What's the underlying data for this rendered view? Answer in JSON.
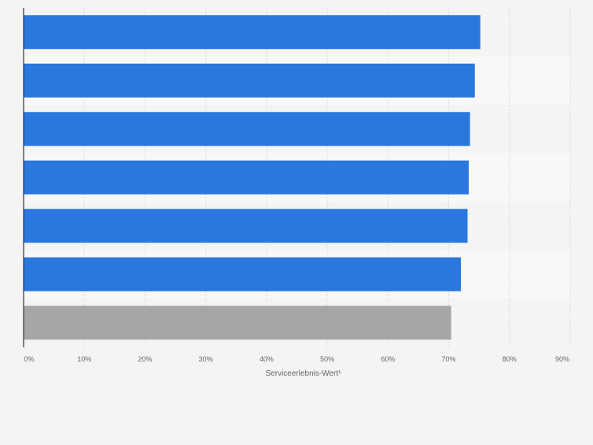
{
  "chart_data": {
    "type": "bar",
    "orientation": "horizontal",
    "xlabel": "Serviceerlebnis-Wert¹",
    "xlim": [
      0,
      90
    ],
    "x_ticks": [
      "0%",
      "10%",
      "20%",
      "30%",
      "40%",
      "50%",
      "60%",
      "70%",
      "80%",
      "90%"
    ],
    "categories": [
      "",
      "",
      "",
      "",
      "",
      "",
      ""
    ],
    "values": [
      75.2,
      74.3,
      73.5,
      73.3,
      73.1,
      72.0,
      70.4
    ],
    "bar_colors": [
      "#2a77dd",
      "#2a77dd",
      "#2a77dd",
      "#2a77dd",
      "#2a77dd",
      "#2a77dd",
      "#a6a6a6"
    ],
    "grid": true,
    "legend": "none"
  },
  "colors": {
    "background": "#f4f4f4",
    "band_alt": "#f8f8f8",
    "grid": "#dcdcdc",
    "axis": "#333333",
    "tick_text": "#666666"
  }
}
